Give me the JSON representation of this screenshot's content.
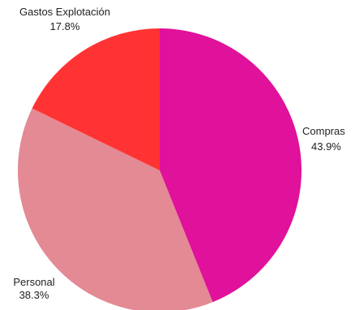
{
  "chart_data": {
    "type": "pie",
    "slices": [
      {
        "label": "Compras",
        "value": 43.9,
        "value_label": "43.9%",
        "color": "#E0119A"
      },
      {
        "label": "Personal",
        "value": 38.3,
        "value_label": "38.3%",
        "color": "#E38A94"
      },
      {
        "label": "Gastos Explotación",
        "value": 17.8,
        "value_label": "17.8%",
        "color": "#FF3333"
      }
    ],
    "start_angle_deg": 0,
    "direction": "clockwise",
    "legend": "none"
  }
}
